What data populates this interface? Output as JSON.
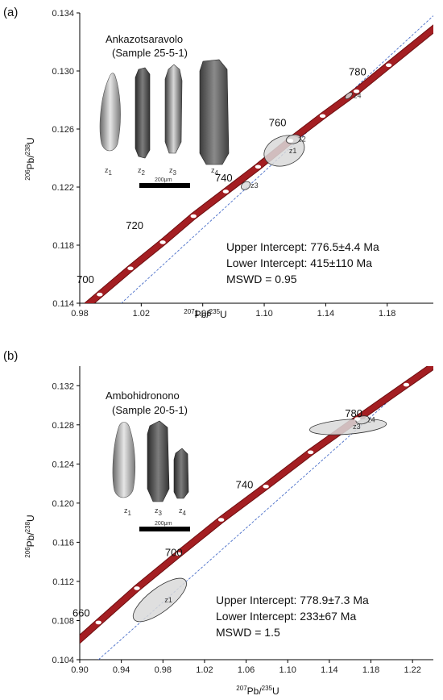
{
  "chart_data": [
    {
      "type": "scatter",
      "panel_label": "(a)",
      "xlabel": {
        "sup": "207",
        "base": "Pb/",
        "sup2": "235",
        "end": "U"
      },
      "ylabel": {
        "sup": "206",
        "base": "Pb/",
        "sup2": "238",
        "end": "U"
      },
      "xlim": [
        0.98,
        1.21
      ],
      "ylim": [
        0.114,
        0.134
      ],
      "xticks": [
        "0.98",
        "1.02",
        "1.06",
        "1.10",
        "1.14",
        "1.18"
      ],
      "xtick_values": [
        0.98,
        1.02,
        1.06,
        1.1,
        1.14,
        1.18
      ],
      "yticks": [
        "0.114",
        "0.118",
        "0.122",
        "0.126",
        "0.130",
        "0.134"
      ],
      "ytick_values": [
        0.114,
        0.118,
        0.122,
        0.126,
        0.13,
        0.134
      ],
      "concordia_age_labels": [
        {
          "text": "700",
          "x": 0.978,
          "y": 0.1154
        },
        {
          "text": "720",
          "x": 1.01,
          "y": 0.1191
        },
        {
          "text": "740",
          "x": 1.068,
          "y": 0.1224
        },
        {
          "text": "760",
          "x": 1.103,
          "y": 0.1262
        },
        {
          "text": "780",
          "x": 1.155,
          "y": 0.1297
        }
      ],
      "concordia_markers_x": [
        0.993,
        1.013,
        1.034,
        1.054,
        1.075,
        1.096,
        1.117,
        1.138,
        1.16,
        1.181
      ],
      "concordia_markers_y": [
        0.1146,
        0.1164,
        0.1182,
        0.12,
        0.1217,
        0.1234,
        0.1252,
        0.1269,
        0.1286,
        0.1304
      ],
      "discordia": {
        "x": [
          1.005,
          1.21
        ],
        "y": [
          0.1138,
          0.1338
        ]
      },
      "ellipses": [
        {
          "name": "z1",
          "cx": 1.113,
          "cy": 0.1245,
          "rx": 0.0135,
          "ry": 0.001,
          "angle": -0.35
        },
        {
          "name": "z2",
          "cx": 1.119,
          "cy": 0.1253,
          "rx": 0.0048,
          "ry": 0.0003,
          "angle": -0.2
        },
        {
          "name": "z3",
          "cx": 1.088,
          "cy": 0.1221,
          "rx": 0.0032,
          "ry": 0.00025,
          "angle": -0.6
        },
        {
          "name": "z4",
          "cx": 1.155,
          "cy": 0.1283,
          "rx": 0.0028,
          "ry": 0.00015,
          "angle": -0.7
        }
      ],
      "annotation": {
        "upper": "Upper Intercept: 776.5±4.4  Ma",
        "lower": "Lower Intercept: 415±110 Ma",
        "mswd": "MSWD = 0.95"
      },
      "inset": {
        "title": "Ankazotsaravolo",
        "subtitle": "(Sample 25-5-1)",
        "scale_label": "200μm",
        "grains": [
          {
            "label": "z",
            "sub": "1"
          },
          {
            "label": "z",
            "sub": "2"
          },
          {
            "label": "z",
            "sub": "3"
          },
          {
            "label": "z",
            "sub": "4"
          }
        ]
      }
    },
    {
      "type": "scatter",
      "panel_label": "(b)",
      "xlabel": {
        "sup": "207",
        "base": "Pb/",
        "sup2": "235",
        "end": "U"
      },
      "ylabel": {
        "sup": "206",
        "base": "Pb/",
        "sup2": "238",
        "end": "U"
      },
      "xlim": [
        0.9,
        1.24
      ],
      "ylim": [
        0.104,
        0.134
      ],
      "xticks": [
        "0.90",
        "0.94",
        "0.98",
        "1.02",
        "1.06",
        "1.10",
        "1.14",
        "1.18",
        "1.22"
      ],
      "xtick_values": [
        0.9,
        0.94,
        0.98,
        1.02,
        1.06,
        1.1,
        1.14,
        1.18,
        1.22
      ],
      "yticks": [
        "0.104",
        "0.108",
        "0.112",
        "0.116",
        "0.120",
        "0.124",
        "0.128",
        "0.132"
      ],
      "ytick_values": [
        0.104,
        0.108,
        0.112,
        0.116,
        0.12,
        0.124,
        0.128,
        0.132
      ],
      "concordia_age_labels": [
        {
          "text": "660",
          "x": 0.893,
          "y": 0.1084
        },
        {
          "text": "700",
          "x": 0.982,
          "y": 0.1146
        },
        {
          "text": "740",
          "x": 1.05,
          "y": 0.1215
        },
        {
          "text": "780",
          "x": 1.155,
          "y": 0.1288
        }
      ],
      "concordia_markers_x": [
        0.918,
        0.955,
        0.995,
        1.036,
        1.079,
        1.122,
        1.167,
        1.214
      ],
      "concordia_markers_y": [
        0.1078,
        0.1113,
        0.1148,
        0.1183,
        0.1217,
        0.1252,
        0.1286,
        0.1321
      ],
      "discordia": {
        "x": [
          0.918,
          1.24
        ],
        "y": [
          0.104,
          0.1345
        ]
      },
      "ellipses": [
        {
          "name": "z1",
          "cx": 0.977,
          "cy": 0.1101,
          "rx": 0.031,
          "ry": 0.0012,
          "angle": -0.65
        },
        {
          "name": "z3",
          "cx": 1.158,
          "cy": 0.1278,
          "rx": 0.037,
          "ry": 0.00075,
          "angle": -0.08
        },
        {
          "name": "z4",
          "cx": 1.172,
          "cy": 0.1285,
          "rx": 0.0065,
          "ry": 0.0004,
          "angle": -0.2
        }
      ],
      "annotation": {
        "upper": "Upper Intercept: 778.9±7.3 Ma",
        "lower": "Lower Intercept: 233±67 Ma",
        "mswd": "MSWD = 1.5"
      },
      "inset": {
        "title": "Ambohidronono",
        "subtitle": "(Sample 20-5-1)",
        "scale_label": "200μm",
        "grains": [
          {
            "label": "z",
            "sub": "1"
          },
          {
            "label": "z",
            "sub": "3"
          },
          {
            "label": "z",
            "sub": "4"
          }
        ]
      }
    }
  ],
  "colors": {
    "concordia": "#a41e22",
    "concordia_edge": "#6e0e10",
    "discordia": "#4a6fc9",
    "ellipse_fill": "#d9d9d9",
    "ellipse_stroke": "#333333"
  }
}
